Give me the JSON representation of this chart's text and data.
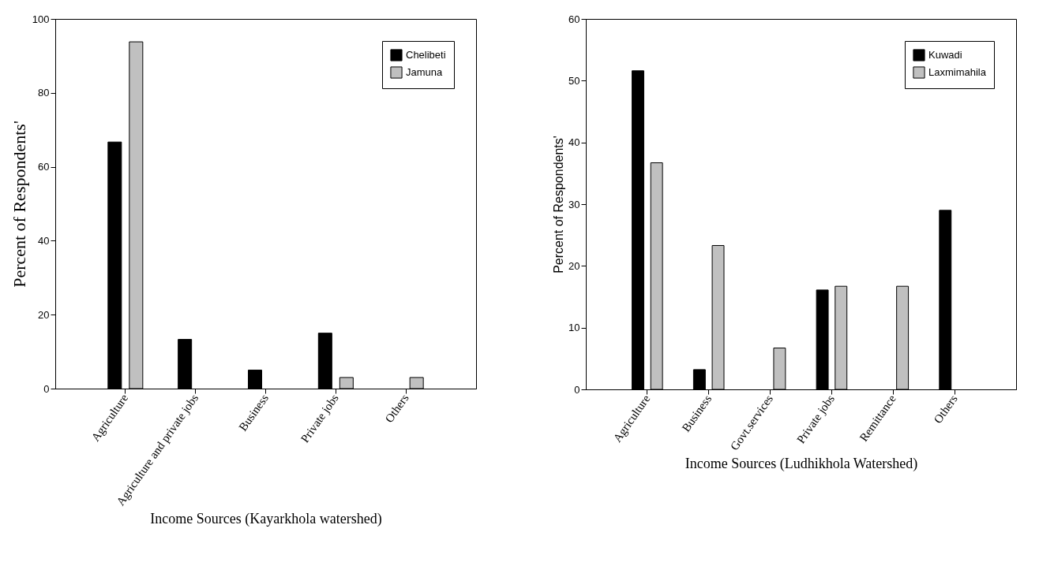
{
  "chart_data": [
    {
      "type": "bar",
      "xlabel": "Income Sources (Kayarkhola watershed)",
      "ylabel": "Percent of Respondents'",
      "categories": [
        "Agriculture",
        "Agriculture and private jobs",
        "Business",
        "Private jobs",
        "Others"
      ],
      "series": [
        {
          "name": "Chelibeti",
          "color": "#000000",
          "values": [
            66.7,
            13.3,
            5,
            15,
            null
          ]
        },
        {
          "name": "Jamuna",
          "color": "#c0c0c0",
          "values": [
            93.8,
            null,
            null,
            3,
            3
          ]
        }
      ],
      "ylim": [
        0,
        100
      ],
      "yticks": [
        0,
        20,
        40,
        60,
        80,
        100
      ],
      "grid": false,
      "legend": "top right"
    },
    {
      "type": "bar",
      "xlabel": "Income Sources (Ludhikhola Watershed)",
      "ylabel": "Percent of Respondents'",
      "categories": [
        "Agriculture",
        "Business",
        "Govt.services",
        "Private jobs",
        "Remittance",
        "Others"
      ],
      "series": [
        {
          "name": "Kuwadi",
          "color": "#000000",
          "values": [
            51.6,
            3.2,
            null,
            16.1,
            null,
            29
          ]
        },
        {
          "name": "Laxmimahila",
          "color": "#c0c0c0",
          "values": [
            36.7,
            23.3,
            6.7,
            16.7,
            16.7,
            null
          ]
        }
      ],
      "ylim": [
        0,
        60
      ],
      "yticks": [
        0,
        10,
        20,
        30,
        40,
        50,
        60
      ],
      "grid": false,
      "legend": "top right"
    }
  ]
}
